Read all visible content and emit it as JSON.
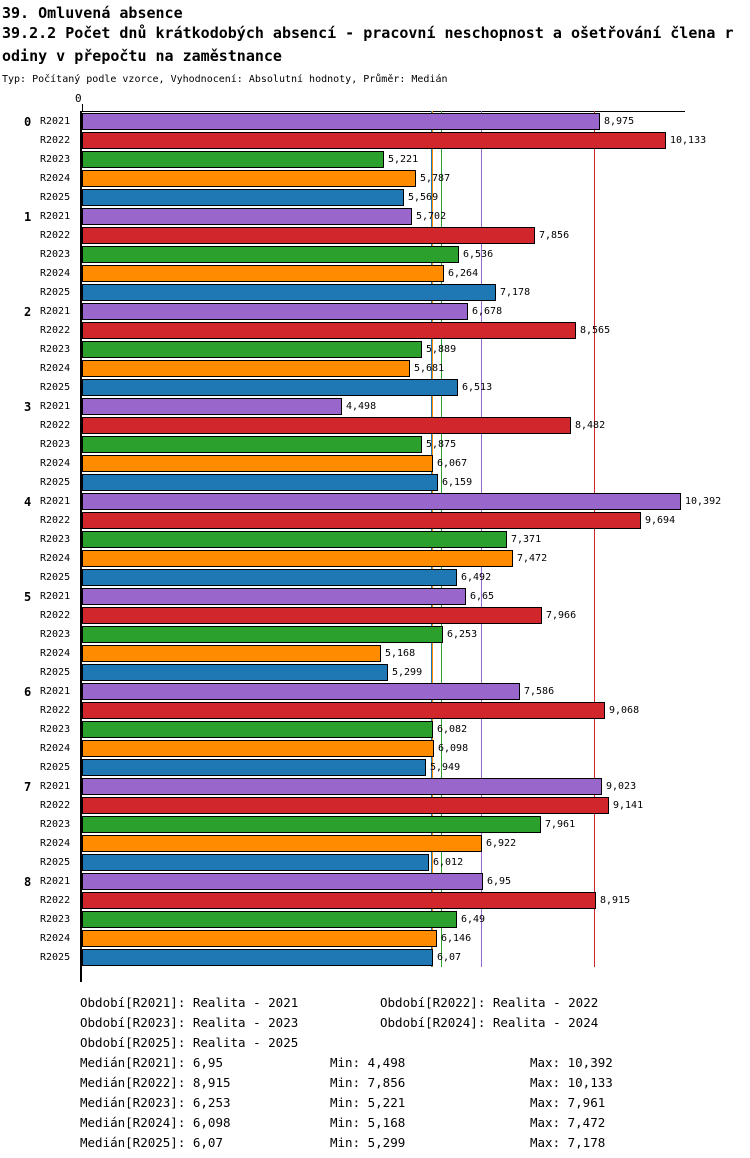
{
  "header": {
    "line1": "39. Omluvená absence",
    "line2": "39.2.2 Počet dnů krátkodobých absencí - pracovní neschopnost a ošetřování člena rodiny v přepočtu na zaměstnance",
    "meta": "Typ: Počítaný podle vzorce, Vyhodnocení: Absolutní hodnoty, Průměr: Medián"
  },
  "chart_data": {
    "type": "bar",
    "orientation": "horizontal",
    "title": "39.2.2 Počet dnů krátkodobých absencí - pracovní neschopnost a ošetřování člena rodiny v přepočtu na zaměstnance",
    "xlabel": "",
    "ylabel": "",
    "xlim": [
      0,
      10.5
    ],
    "axis_origin_label": "0",
    "grid": false,
    "legend_position": "bottom",
    "categories": [
      "0",
      "1",
      "2",
      "3",
      "4",
      "5",
      "6",
      "7",
      "8"
    ],
    "series": [
      {
        "name": "R2021",
        "color": "#9966CC",
        "values": [
          8.975,
          5.702,
          6.678,
          4.498,
          10.392,
          6.65,
          7.586,
          9.023,
          6.95
        ],
        "labels": [
          "8,975",
          "5,702",
          "6,678",
          "4,498",
          "10,392",
          "6,65",
          "7,586",
          "9,023",
          "6,95"
        ]
      },
      {
        "name": "R2022",
        "color": "#D2262D",
        "values": [
          10.133,
          7.856,
          8.565,
          8.482,
          9.694,
          7.966,
          9.068,
          9.141,
          8.915
        ],
        "labels": [
          "10,133",
          "7,856",
          "8,565",
          "8,482",
          "9,694",
          "7,966",
          "9,068",
          "9,141",
          "8,915"
        ]
      },
      {
        "name": "R2023",
        "color": "#2CA02C",
        "values": [
          5.221,
          6.536,
          5.889,
          5.875,
          7.371,
          6.253,
          6.082,
          7.961,
          6.49
        ],
        "labels": [
          "5,221",
          "6,536",
          "5,889",
          "5,875",
          "7,371",
          "6,253",
          "6,082",
          "7,961",
          "6,49"
        ]
      },
      {
        "name": "R2024",
        "color": "#FF8C00",
        "values": [
          5.787,
          6.264,
          5.681,
          6.067,
          7.472,
          5.168,
          6.098,
          6.922,
          6.146
        ],
        "labels": [
          "5,787",
          "6,264",
          "5,681",
          "6,067",
          "7,472",
          "5,168",
          "6,098",
          "6,922",
          "6,146"
        ]
      },
      {
        "name": "R2025",
        "color": "#1F77B4",
        "values": [
          5.569,
          7.178,
          6.513,
          6.159,
          6.492,
          5.299,
          5.949,
          6.012,
          6.07
        ],
        "labels": [
          "5,569",
          "7,178",
          "6,513",
          "6,159",
          "6,492",
          "5,299",
          "5,949",
          "6,012",
          "6,07"
        ]
      }
    ],
    "median_lines": {
      "R2021": 6.95,
      "R2022": 8.915,
      "R2023": 6.253,
      "R2024": 6.098,
      "R2025": 6.07
    }
  },
  "legend": {
    "items": [
      "Období[R2021]: Realita - 2021",
      "Období[R2022]: Realita - 2022",
      "Období[R2023]: Realita - 2023",
      "Období[R2024]: Realita - 2024",
      "Období[R2025]: Realita - 2025"
    ]
  },
  "stats": {
    "rows": [
      {
        "median": "Medián[R2021]: 6,95",
        "min": "Min: 4,498",
        "max": "Max: 10,392"
      },
      {
        "median": "Medián[R2022]: 8,915",
        "min": "Min: 7,856",
        "max": "Max: 10,133"
      },
      {
        "median": "Medián[R2023]: 6,253",
        "min": "Min: 5,221",
        "max": "Max: 7,961"
      },
      {
        "median": "Medián[R2024]: 6,098",
        "min": "Min: 5,168",
        "max": "Max: 7,472"
      },
      {
        "median": "Medián[R2025]: 6,07",
        "min": "Min: 5,299",
        "max": "Max: 7,178"
      }
    ]
  }
}
